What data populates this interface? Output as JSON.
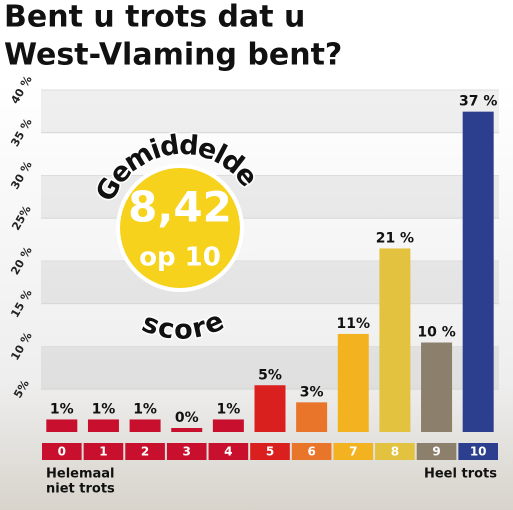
{
  "chart_data": {
    "type": "bar",
    "title": "Bent u trots dat u West-Vlaming bent?",
    "categories": [
      "0",
      "1",
      "2",
      "3",
      "4",
      "5",
      "6",
      "7",
      "8",
      "9",
      "10"
    ],
    "values": [
      1,
      1,
      1,
      0,
      1,
      5,
      3,
      11,
      21,
      10,
      37
    ],
    "value_labels": [
      "1%",
      "1%",
      "1%",
      "0%",
      "1%",
      "5%",
      "3%",
      "11%",
      "21 %",
      "10 %",
      "37 %"
    ],
    "colors": [
      "#c8102e",
      "#c8102e",
      "#c8102e",
      "#c8102e",
      "#c8102e",
      "#d9201f",
      "#e9752b",
      "#f3b320",
      "#e3c23f",
      "#8c7f6b",
      "#2b3f8e"
    ],
    "ylim": [
      0,
      40
    ],
    "yticks": [
      {
        "value": 5,
        "label": "5%"
      },
      {
        "value": 10,
        "label": "10 %"
      },
      {
        "value": 15,
        "label": "15 %"
      },
      {
        "value": 20,
        "label": "20 %"
      },
      {
        "value": 25,
        "label": "25%"
      },
      {
        "value": 30,
        "label": "30 %"
      },
      {
        "value": 35,
        "label": "35 %"
      },
      {
        "value": 40,
        "label": "40 %"
      }
    ],
    "grid": true,
    "annotations": {
      "left": [
        "Helemaal",
        "niet trots"
      ],
      "right": "Heel trots",
      "badge": {
        "top": "Gemiddelde",
        "score": "8,42",
        "scale": "op 10",
        "bottom": "score"
      }
    }
  }
}
